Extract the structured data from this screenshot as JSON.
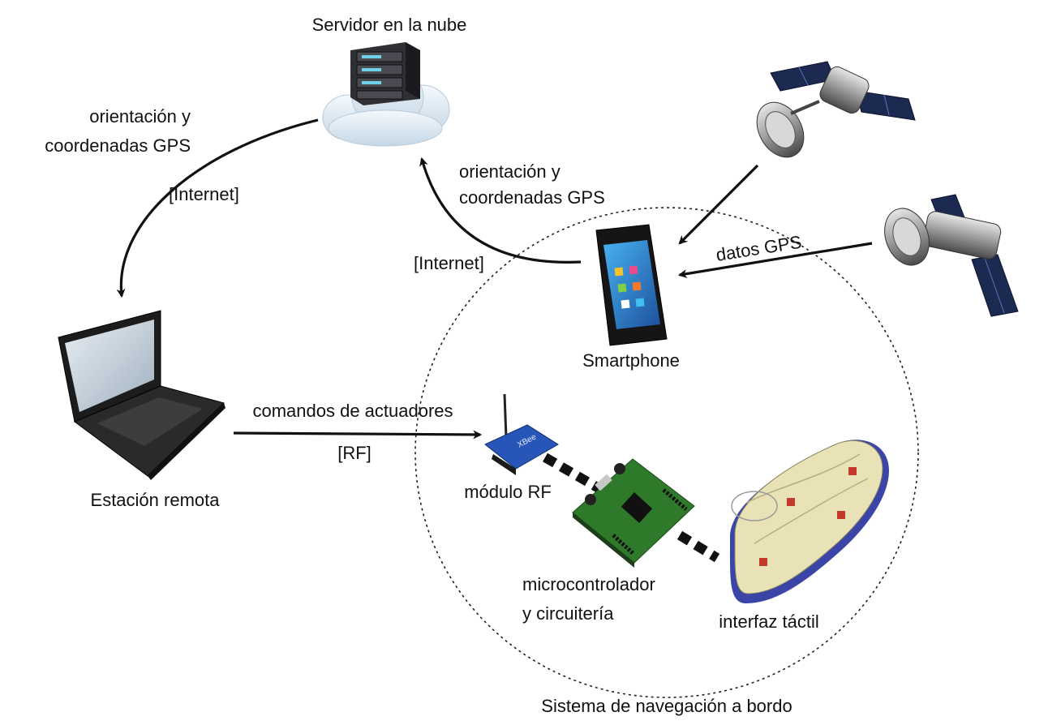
{
  "labels": {
    "cloud_server": "Servidor en la nube",
    "link_cloud_to_station": {
      "line1": "orientación y",
      "line2": "coordenadas GPS",
      "channel": "[Internet]"
    },
    "link_phone_to_cloud": {
      "line1": "orientación y",
      "line2": "coordenadas GPS",
      "channel": "[Internet]"
    },
    "gps_data": "datos GPS",
    "smartphone": "Smartphone",
    "remote_station": "Estación remota",
    "actuator_commands": "comandos de actuadores",
    "rf_channel": "[RF]",
    "rf_module": "módulo RF",
    "microcontroller": {
      "line1": "microcontrolador",
      "line2": "y circuitería"
    },
    "tactile_interface": "interfaz táctil",
    "onboard_system": "Sistema de navegación a bordo"
  },
  "module_chip_text": "XBee",
  "colors": {
    "arrow": "#111111",
    "cloud": "#dbe8f2",
    "server": "#2f2f34",
    "pcb": "#2f7a2a",
    "xbee": "#2756b8",
    "insole": "#e9e2b6",
    "insole_edge": "#3b45a8",
    "laptop_body": "#1e1e1e",
    "phone_screen": "#2a7fd4"
  }
}
